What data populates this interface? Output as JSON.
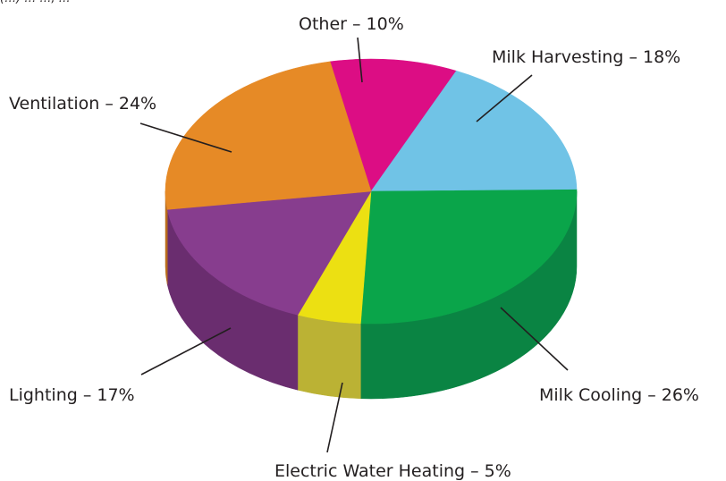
{
  "chart_data": {
    "type": "pie",
    "style": "3d",
    "title": "",
    "top_fragment": "(…) … …, …",
    "slices": [
      {
        "label": "Other – 10%",
        "name": "Other",
        "value": 10,
        "color": "#dc0d84",
        "side": "#a30a62"
      },
      {
        "label": "Milk Harvesting – 18%",
        "name": "Milk Harvesting",
        "value": 18,
        "color": "#70c3e6",
        "side": "#4f9fc0"
      },
      {
        "label": "Milk Cooling – 26%",
        "name": "Milk Cooling",
        "value": 26,
        "color": "#0aa54a",
        "side": "#0a8443"
      },
      {
        "label": "Electric Water Heating – 5%",
        "name": "Electric Water Heating",
        "value": 5,
        "color": "#ece012",
        "side": "#bbb234"
      },
      {
        "label": "Lighting – 17%",
        "name": "Lighting",
        "value": 17,
        "color": "#873d8e",
        "side": "#6a2d6f"
      },
      {
        "label": "Ventilation – 24%",
        "name": "Ventilation",
        "value": 24,
        "color": "#e68a26",
        "side": "#b86d1d"
      }
    ],
    "legend": "none"
  }
}
